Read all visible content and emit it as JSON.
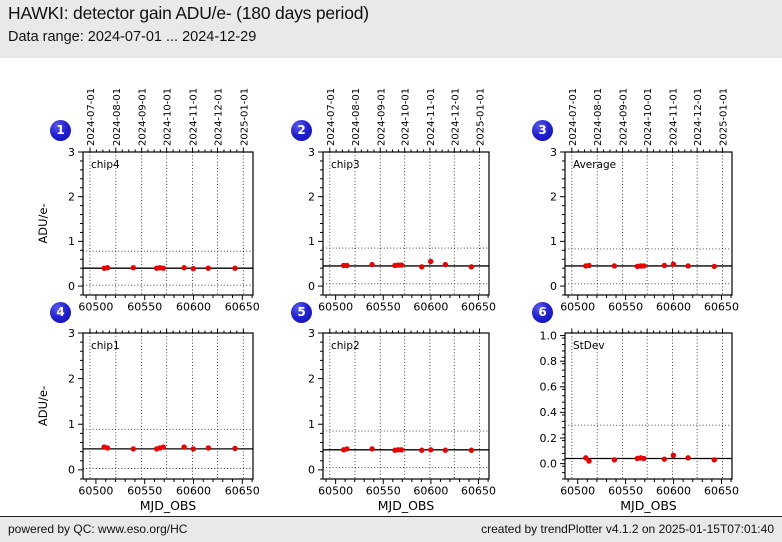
{
  "header": {
    "title": "HAWKI: detector gain ADU/e- (180 days period)",
    "subtitle": "Data range: 2024-07-01 ... 2024-12-29"
  },
  "footer": {
    "left": "powered by QC: www.eso.org/HC",
    "right": "created by trendPlotter v4.1.2 on 2025-01-15T07:01:40"
  },
  "badges": [
    "1",
    "2",
    "3",
    "4",
    "5",
    "6"
  ],
  "colors": {
    "point": "#ee0000",
    "badge_blue": "#2222d4",
    "mean_line": "#000000",
    "grid": "#333333",
    "frame": "#000000",
    "header_bg": "#e9e9e9",
    "plot_bg": "#ffffff"
  },
  "x_axis": {
    "label": "MJD_OBS",
    "major_ticks": [
      60500,
      60550,
      60600,
      60650
    ],
    "minor_step": 10,
    "date_ticks": [
      {
        "label": "2024-07-01",
        "mjd": 60492
      },
      {
        "label": "2024-08-01",
        "mjd": 60523
      },
      {
        "label": "2024-09-01",
        "mjd": 60554
      },
      {
        "label": "2024-10-01",
        "mjd": 60584
      },
      {
        "label": "2024-11-01",
        "mjd": 60615
      },
      {
        "label": "2024-12-01",
        "mjd": 60645
      },
      {
        "label": "2025-01-01",
        "mjd": 60676
      }
    ],
    "date_scale": {
      "mjd0": 60492,
      "f0": 0.041,
      "mjd1": 60676,
      "f1": 0.943
    },
    "tick_scale": {
      "mjd0": 60500,
      "f0": 0.076,
      "mjd1": 60650,
      "f1": 0.937
    }
  },
  "chart_data": [
    {
      "panel": "1",
      "label": "chip4",
      "type": "scatter",
      "ylabel": "ADU/e-",
      "xlabel": null,
      "show_date_labels": true,
      "ylim": [
        -0.2,
        3.0
      ],
      "yticks": [
        0,
        1,
        2,
        3
      ],
      "ytick_labels": [
        "0",
        "1",
        "2",
        "3"
      ],
      "yminor_step": 0.2,
      "mean_line": 0.4,
      "thresholds": [
        0.02,
        0.78
      ],
      "x_mjd": [
        60509,
        60513,
        60544,
        60572,
        60576,
        60580,
        60605,
        60616,
        60634,
        60666
      ],
      "y": [
        0.4,
        0.41,
        0.41,
        0.4,
        0.41,
        0.4,
        0.41,
        0.39,
        0.4,
        0.4
      ]
    },
    {
      "panel": "2",
      "label": "chip3",
      "type": "scatter",
      "ylabel": null,
      "xlabel": null,
      "show_date_labels": true,
      "ylim": [
        -0.2,
        3.0
      ],
      "yticks": [
        0,
        1,
        2,
        3
      ],
      "ytick_labels": [
        "0",
        "1",
        "2",
        "3"
      ],
      "yminor_step": 0.2,
      "mean_line": 0.45,
      "thresholds": [
        0.05,
        0.85
      ],
      "x_mjd": [
        60509,
        60513,
        60544,
        60572,
        60576,
        60580,
        60605,
        60616,
        60634,
        60666
      ],
      "y": [
        0.46,
        0.46,
        0.48,
        0.46,
        0.47,
        0.47,
        0.43,
        0.55,
        0.48,
        0.43
      ]
    },
    {
      "panel": "3",
      "label": "Average",
      "type": "scatter",
      "ylabel": null,
      "xlabel": null,
      "show_date_labels": true,
      "ylim": [
        -0.2,
        3.0
      ],
      "yticks": [
        0,
        1,
        2,
        3
      ],
      "ytick_labels": [
        "0",
        "1",
        "2",
        "3"
      ],
      "yminor_step": 0.2,
      "mean_line": 0.45,
      "thresholds": [
        0.05,
        0.83
      ],
      "x_mjd": [
        60509,
        60513,
        60544,
        60572,
        60576,
        60580,
        60605,
        60616,
        60634,
        60666
      ],
      "y": [
        0.45,
        0.46,
        0.45,
        0.44,
        0.45,
        0.45,
        0.46,
        0.49,
        0.45,
        0.44
      ]
    },
    {
      "panel": "4",
      "label": "chip1",
      "type": "scatter",
      "ylabel": "ADU/e-",
      "xlabel": "MJD_OBS",
      "show_date_labels": false,
      "ylim": [
        -0.2,
        3.0
      ],
      "yticks": [
        0,
        1,
        2,
        3
      ],
      "ytick_labels": [
        "0",
        "1",
        "2",
        "3"
      ],
      "yminor_step": 0.2,
      "mean_line": 0.46,
      "thresholds": [
        0.03,
        0.89
      ],
      "x_mjd": [
        60509,
        60513,
        60544,
        60572,
        60576,
        60580,
        60605,
        60616,
        60634,
        60666
      ],
      "y": [
        0.5,
        0.48,
        0.46,
        0.46,
        0.48,
        0.5,
        0.5,
        0.46,
        0.48,
        0.47
      ]
    },
    {
      "panel": "5",
      "label": "chip2",
      "type": "scatter",
      "ylabel": null,
      "xlabel": "MJD_OBS",
      "show_date_labels": false,
      "ylim": [
        -0.2,
        3.0
      ],
      "yticks": [
        0,
        1,
        2,
        3
      ],
      "ytick_labels": [
        "0",
        "1",
        "2",
        "3"
      ],
      "yminor_step": 0.2,
      "mean_line": 0.44,
      "thresholds": [
        0.05,
        0.85
      ],
      "x_mjd": [
        60509,
        60513,
        60544,
        60572,
        60576,
        60580,
        60605,
        60616,
        60634,
        60666
      ],
      "y": [
        0.44,
        0.46,
        0.46,
        0.43,
        0.44,
        0.44,
        0.43,
        0.44,
        0.43,
        0.43
      ]
    },
    {
      "panel": "6",
      "label": "StDev",
      "type": "scatter",
      "ylabel": null,
      "xlabel": "MJD_OBS",
      "show_date_labels": false,
      "ylim": [
        -0.12,
        1.02
      ],
      "yticks": [
        0,
        0.2,
        0.4,
        0.6,
        0.8,
        1.0
      ],
      "ytick_labels": [
        "0.0",
        "0.2",
        "0.4",
        "0.6",
        "0.8",
        "1.0"
      ],
      "yminor_step": 0.05,
      "mean_line": 0.04,
      "thresholds": [
        0.3
      ],
      "x_mjd": [
        60509,
        60513,
        60544,
        60572,
        60576,
        60580,
        60605,
        60616,
        60634,
        60666
      ],
      "y": [
        0.045,
        0.02,
        0.03,
        0.04,
        0.045,
        0.04,
        0.035,
        0.065,
        0.045,
        0.03
      ]
    }
  ]
}
